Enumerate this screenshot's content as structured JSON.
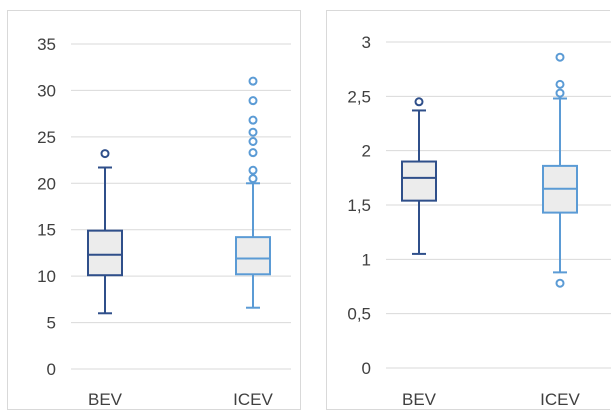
{
  "colors": {
    "bev": "#2F4F8A",
    "icev": "#5B9BD5",
    "grid": "#d9d9d9",
    "box_fill": "#ececec",
    "axis_text": "#404040"
  },
  "chart_data": [
    {
      "type": "box",
      "title": "",
      "xlabel": "",
      "ylabel": "",
      "ylim": [
        0,
        35
      ],
      "yticks": [
        "0",
        "5",
        "10",
        "15",
        "20",
        "25",
        "30",
        "35"
      ],
      "ytick_values": [
        0,
        5,
        10,
        15,
        20,
        25,
        30,
        35
      ],
      "grid": true,
      "categories": [
        "BEV",
        "ICEV"
      ],
      "series": [
        {
          "whisker_low": 6.0,
          "q1": 10.1,
          "median": 12.3,
          "q3": 14.9,
          "whisker_high": 21.7,
          "outliers": [
            23.2
          ]
        },
        {
          "whisker_low": 6.6,
          "q1": 10.2,
          "median": 11.9,
          "q3": 14.2,
          "whisker_high": 20.0,
          "outliers": [
            20.5,
            21.4,
            23.3,
            24.5,
            25.5,
            26.8,
            28.9,
            31.0
          ]
        }
      ]
    },
    {
      "type": "box",
      "title": "",
      "xlabel": "",
      "ylabel": "",
      "ylim": [
        0,
        3
      ],
      "yticks": [
        "0",
        "0,5",
        "1",
        "1,5",
        "2",
        "2,5",
        "3"
      ],
      "ytick_values": [
        0,
        0.5,
        1,
        1.5,
        2,
        2.5,
        3
      ],
      "grid": true,
      "categories": [
        "BEV",
        "ICEV"
      ],
      "series": [
        {
          "whisker_low": 1.05,
          "q1": 1.54,
          "median": 1.75,
          "q3": 1.9,
          "whisker_high": 2.37,
          "outliers": [
            2.45
          ]
        },
        {
          "whisker_low": 0.88,
          "q1": 1.43,
          "median": 1.65,
          "q3": 1.86,
          "whisker_high": 2.48,
          "outliers": [
            0.78,
            2.53,
            2.61,
            2.86
          ]
        }
      ]
    }
  ]
}
